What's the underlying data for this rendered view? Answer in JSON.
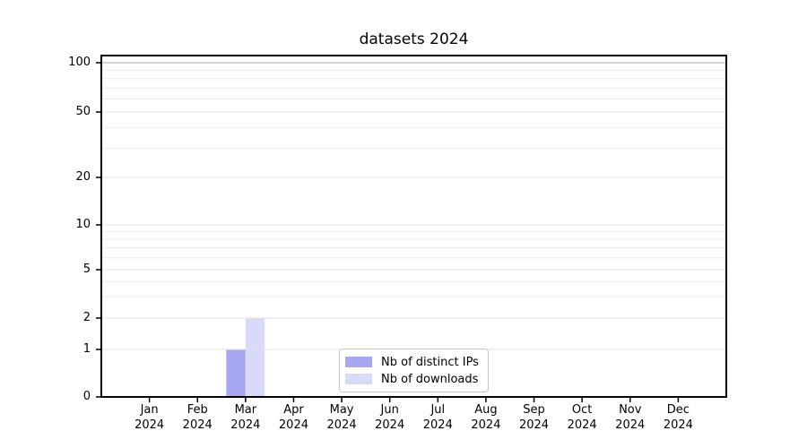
{
  "chart_data": {
    "type": "bar",
    "title": "datasets 2024",
    "x_axis": {
      "months": [
        "Jan",
        "Feb",
        "Mar",
        "Apr",
        "May",
        "Jun",
        "Jul",
        "Aug",
        "Sep",
        "Oct",
        "Nov",
        "Dec"
      ],
      "year": "2024"
    },
    "y_axis": {
      "scale": "log1p",
      "ticks": [
        0,
        1,
        2,
        5,
        10,
        20,
        50,
        100
      ],
      "minor_gridlines": [
        3,
        4,
        6,
        7,
        8,
        9,
        30,
        40,
        60,
        70,
        80,
        90
      ],
      "ylim": [
        0,
        110
      ]
    },
    "series": [
      {
        "name": "Nb of distinct IPs",
        "color": "#a8a8f2",
        "values": [
          0,
          0,
          1,
          0,
          0,
          0,
          0,
          0,
          0,
          0,
          0,
          0
        ]
      },
      {
        "name": "Nb of downloads",
        "color": "#d9d9f8",
        "values": [
          0,
          0,
          2,
          0,
          0,
          0,
          0,
          0,
          0,
          0,
          0,
          0
        ]
      }
    ],
    "legend": {
      "position": "lower center"
    },
    "colors": {
      "grid_minor": "#ececec",
      "grid_major": "#e2e2e2",
      "grid_top": "#c5c5c5",
      "axis": "#000000",
      "background": "#ffffff"
    }
  }
}
